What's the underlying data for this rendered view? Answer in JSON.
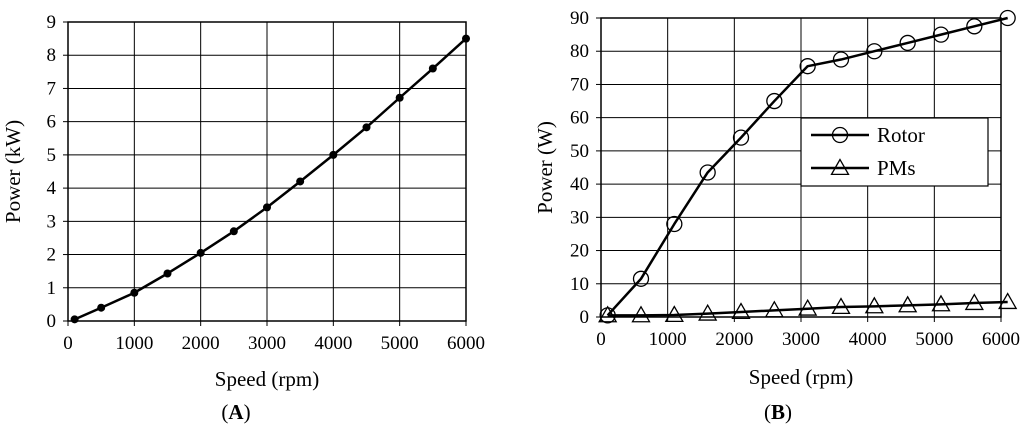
{
  "chart_data": [
    {
      "type": "line",
      "panel_label": "A",
      "xlabel": "Speed (rpm)",
      "ylabel": "Power  (kW)",
      "xlim": [
        0,
        6000
      ],
      "ylim": [
        0,
        9
      ],
      "xticks": [
        0,
        1000,
        2000,
        3000,
        4000,
        5000,
        6000
      ],
      "yticks": [
        0,
        1,
        2,
        3,
        4,
        5,
        6,
        7,
        8,
        9
      ],
      "grid": true,
      "series": [
        {
          "marker": "filled-circle",
          "x": [
            100,
            500,
            1000,
            1500,
            2000,
            2500,
            3000,
            3500,
            4000,
            4500,
            5000,
            5500,
            6000
          ],
          "y": [
            0.05,
            0.4,
            0.85,
            1.43,
            2.05,
            2.7,
            3.42,
            4.2,
            5.0,
            5.83,
            6.72,
            7.6,
            8.5
          ]
        }
      ]
    },
    {
      "type": "line",
      "panel_label": "B",
      "xlabel": "Speed (rpm)",
      "ylabel": "Power (W)",
      "xlim": [
        0,
        6000
      ],
      "ylim": [
        0,
        90
      ],
      "xticks": [
        0,
        1000,
        2000,
        3000,
        4000,
        5000,
        6000
      ],
      "yticks": [
        0,
        10,
        20,
        30,
        40,
        50,
        60,
        70,
        80,
        90
      ],
      "grid": true,
      "legend_position": "center-right",
      "series": [
        {
          "name": "Rotor",
          "marker": "open-circle",
          "x": [
            100,
            600,
            1100,
            1600,
            2100,
            2600,
            3100,
            3600,
            4100,
            4600,
            5100,
            5600,
            6100
          ],
          "y": [
            0.5,
            11.5,
            28,
            43.5,
            54,
            65,
            75.5,
            77.5,
            80,
            82.5,
            85,
            87.5,
            90
          ]
        },
        {
          "name": "PMs",
          "marker": "open-triangle",
          "x": [
            100,
            600,
            1100,
            1600,
            2100,
            2600,
            3100,
            3600,
            4100,
            4600,
            5100,
            5600,
            6100
          ],
          "y": [
            0.5,
            0.5,
            0.6,
            1.0,
            1.5,
            2.0,
            2.5,
            3.0,
            3.2,
            3.5,
            3.8,
            4.2,
            4.5
          ]
        }
      ]
    }
  ]
}
